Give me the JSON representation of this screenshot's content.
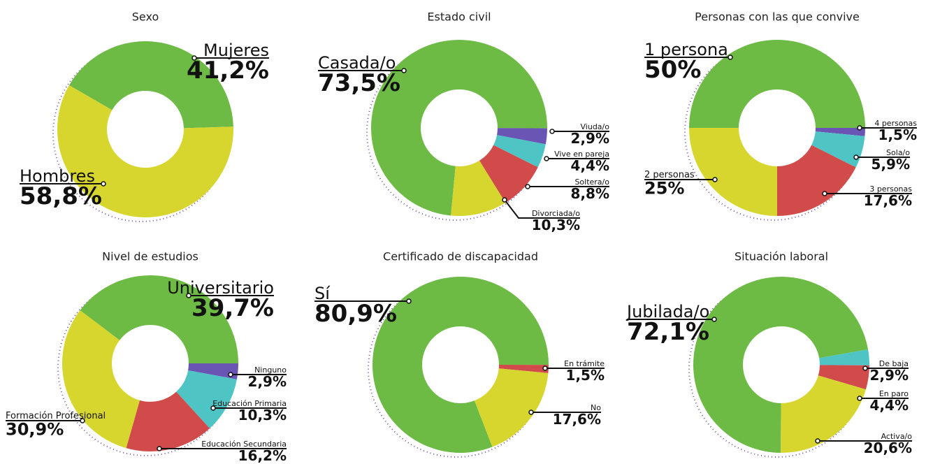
{
  "chart_data": [
    {
      "type": "pie",
      "title": "Sexo",
      "labels": [
        "Mujeres",
        "Hombres"
      ],
      "values": [
        41.2,
        58.8
      ],
      "value_labels": [
        "41,2%",
        "58,8%"
      ],
      "colors": [
        "#6dbb45",
        "#d6d62e"
      ]
    },
    {
      "type": "pie",
      "title": "Estado civil",
      "labels": [
        "Casada/o",
        "Viuda/o",
        "Vive en pareja",
        "Soltera/o",
        "Divorciada/o"
      ],
      "values": [
        73.5,
        2.9,
        4.4,
        8.8,
        10.3
      ],
      "value_labels": [
        "73,5%",
        "2,9%",
        "4,4%",
        "8,8%",
        "10,3%"
      ],
      "colors": [
        "#6dbb45",
        "#6a55b5",
        "#4fc4c4",
        "#d24b4b",
        "#d6d62e"
      ]
    },
    {
      "type": "pie",
      "title": "Personas con las que convive",
      "labels": [
        "1 persona",
        "4 personas",
        "Sola/o",
        "3 personas",
        "2 personas"
      ],
      "values": [
        50,
        1.5,
        5.9,
        17.6,
        25
      ],
      "value_labels": [
        "50%",
        "1,5%",
        "5,9%",
        "17,6%",
        "25%"
      ],
      "colors": [
        "#6dbb45",
        "#6a55b5",
        "#4fc4c4",
        "#d24b4b",
        "#d6d62e"
      ]
    },
    {
      "type": "pie",
      "title": "Nivel de estudios",
      "labels": [
        "Universitario",
        "Ninguno",
        "Educación Primaria",
        "Educación Secundaria",
        "Formación Profesional"
      ],
      "values": [
        39.7,
        2.9,
        10.3,
        16.2,
        30.9
      ],
      "value_labels": [
        "39,7%",
        "2,9%",
        "10,3%",
        "16,2%",
        "30,9%"
      ],
      "colors": [
        "#6dbb45",
        "#6a55b5",
        "#4fc4c4",
        "#d24b4b",
        "#d6d62e"
      ]
    },
    {
      "type": "pie",
      "title": "Certificado de discapacidad",
      "labels": [
        "Sí",
        "En trámite",
        "No"
      ],
      "values": [
        80.9,
        1.5,
        17.6
      ],
      "value_labels": [
        "80,9%",
        "1,5%",
        "17,6%"
      ],
      "colors": [
        "#6dbb45",
        "#d24b4b",
        "#d6d62e"
      ]
    },
    {
      "type": "pie",
      "title": "Situación laboral",
      "labels": [
        "Jubilada/o",
        "De baja",
        "En paro",
        "Activa/o"
      ],
      "values": [
        72.1,
        2.9,
        4.4,
        20.6
      ],
      "value_labels": [
        "72,1%",
        "2,9%",
        "4,4%",
        "20,6%"
      ],
      "colors": [
        "#6dbb45",
        "#4fc4c4",
        "#d24b4b",
        "#d6d62e"
      ]
    }
  ]
}
